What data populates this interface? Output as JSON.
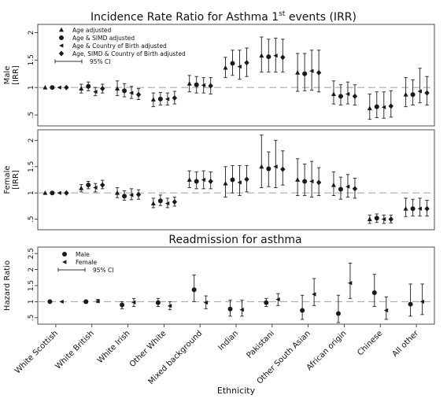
{
  "chart_data": [
    {
      "type": "scatter",
      "title": "Incidence Rate Ratio for Asthma 1",
      "title_superscript": "st",
      "title_suffix": " events (IRR)",
      "ylabel": "Male\n[IRR]",
      "ylim": [
        0.3,
        2.15
      ],
      "yticks": [
        ".5",
        "1",
        "1.5",
        "2"
      ],
      "ytick_values": [
        0.5,
        1,
        1.5,
        2
      ],
      "reference_line": 1,
      "categories": [
        "White Scottish",
        "White British",
        "White Irish",
        "Other White",
        "Mixed background",
        "Indian",
        "Pakistani",
        "Other South Asian",
        "African origin",
        "Chinese",
        "All other"
      ],
      "legend": {
        "position": "top-left",
        "entries": [
          {
            "label": "Age adjusted",
            "marker": "triangle-icon"
          },
          {
            "label": "Age & SIMD adjusted",
            "marker": "circle-icon"
          },
          {
            "label": "Age & Country of Birth adjusted",
            "marker": "left-triangle-icon"
          },
          {
            "label": "Age, SIMD & Country of Birth adjusted",
            "marker": "diamond-icon"
          }
        ],
        "ci_label": "95% CI"
      },
      "series": [
        {
          "name": "Age adjusted",
          "values": [
            1.0,
            0.98,
            0.98,
            0.78,
            1.07,
            1.36,
            1.58,
            1.27,
            0.88,
            0.62,
            0.87
          ],
          "ci_low": [
            1.0,
            0.9,
            0.85,
            0.65,
            0.92,
            1.18,
            1.28,
            0.93,
            0.7,
            0.42,
            0.65
          ],
          "ci_high": [
            1.0,
            1.06,
            1.12,
            0.9,
            1.22,
            1.55,
            1.92,
            1.62,
            1.12,
            0.88,
            1.18
          ]
        },
        {
          "name": "Age & SIMD adjusted",
          "values": [
            1.0,
            1.02,
            0.94,
            0.79,
            1.05,
            1.44,
            1.56,
            1.25,
            0.84,
            0.65,
            0.87
          ],
          "ci_low": [
            1.0,
            0.94,
            0.83,
            0.68,
            0.9,
            1.22,
            1.28,
            0.94,
            0.68,
            0.45,
            0.68
          ],
          "ci_high": [
            1.0,
            1.1,
            1.07,
            0.91,
            1.2,
            1.68,
            1.88,
            1.62,
            1.05,
            0.92,
            1.14
          ]
        },
        {
          "name": "Age & Country of Birth adjusted",
          "values": [
            1.0,
            0.92,
            0.9,
            0.79,
            1.04,
            1.38,
            1.58,
            1.3,
            0.88,
            0.64,
            0.93
          ],
          "ci_low": [
            1.0,
            0.85,
            0.8,
            0.68,
            0.9,
            1.15,
            1.28,
            0.95,
            0.7,
            0.44,
            0.72
          ],
          "ci_high": [
            1.0,
            1.0,
            1.02,
            0.9,
            1.18,
            1.68,
            1.9,
            1.68,
            1.1,
            0.92,
            1.35
          ]
        },
        {
          "name": "Age, SIMD & Country of Birth adjusted",
          "values": [
            1.0,
            0.98,
            0.87,
            0.81,
            1.03,
            1.45,
            1.55,
            1.27,
            0.84,
            0.66,
            0.9
          ],
          "ci_low": [
            1.0,
            0.9,
            0.78,
            0.7,
            0.88,
            1.2,
            1.28,
            0.92,
            0.68,
            0.46,
            0.68
          ],
          "ci_high": [
            1.0,
            1.06,
            0.98,
            0.93,
            1.18,
            1.72,
            1.88,
            1.68,
            1.05,
            0.94,
            1.2
          ]
        }
      ]
    },
    {
      "type": "scatter",
      "ylabel": "Female\n[IRR]",
      "ylim": [
        0.3,
        2.2
      ],
      "yticks": [
        ".5",
        "1",
        "1.5",
        "2"
      ],
      "ytick_values": [
        0.5,
        1,
        1.5,
        2
      ],
      "reference_line": 1,
      "categories": [
        "White Scottish",
        "White British",
        "White Irish",
        "Other White",
        "Mixed background",
        "Indian",
        "Pakistani",
        "Other South Asian",
        "African origin",
        "Chinese",
        "All other"
      ],
      "series": [
        {
          "name": "Age adjusted",
          "values": [
            1.0,
            1.09,
            1.0,
            0.8,
            1.25,
            1.18,
            1.5,
            1.25,
            1.15,
            0.5,
            0.7
          ],
          "ci_low": [
            1.0,
            1.02,
            0.91,
            0.72,
            1.1,
            0.92,
            1.1,
            0.95,
            0.95,
            0.42,
            0.55
          ],
          "ci_high": [
            1.0,
            1.16,
            1.1,
            0.9,
            1.42,
            1.5,
            2.1,
            1.65,
            1.4,
            0.58,
            0.9
          ]
        },
        {
          "name": "Age & SIMD adjusted",
          "values": [
            1.0,
            1.15,
            0.94,
            0.85,
            1.22,
            1.25,
            1.46,
            1.22,
            1.07,
            0.52,
            0.7
          ],
          "ci_low": [
            1.0,
            1.08,
            0.86,
            0.76,
            1.08,
            1.0,
            1.12,
            0.95,
            0.88,
            0.44,
            0.56
          ],
          "ci_high": [
            1.0,
            1.22,
            1.04,
            0.96,
            1.4,
            1.52,
            1.78,
            1.55,
            1.3,
            0.6,
            0.88
          ]
        },
        {
          "name": "Age & Country of Birth adjusted",
          "values": [
            1.0,
            1.1,
            0.96,
            0.8,
            1.25,
            1.2,
            1.5,
            1.22,
            1.12,
            0.5,
            0.7
          ],
          "ci_low": [
            1.0,
            1.02,
            0.87,
            0.72,
            1.08,
            0.95,
            1.1,
            0.92,
            0.92,
            0.42,
            0.56
          ],
          "ci_high": [
            1.0,
            1.18,
            1.08,
            0.9,
            1.42,
            1.52,
            2.0,
            1.6,
            1.35,
            0.58,
            0.9
          ]
        },
        {
          "name": "Age, SIMD & Country of Birth adjusted",
          "values": [
            1.0,
            1.15,
            0.97,
            0.83,
            1.22,
            1.26,
            1.45,
            1.2,
            1.08,
            0.5,
            0.7
          ],
          "ci_low": [
            1.0,
            1.08,
            0.88,
            0.75,
            1.08,
            1.02,
            1.15,
            0.95,
            0.9,
            0.43,
            0.56
          ],
          "ci_high": [
            1.0,
            1.24,
            1.06,
            0.92,
            1.4,
            1.52,
            1.8,
            1.48,
            1.28,
            0.58,
            0.86
          ]
        }
      ]
    },
    {
      "type": "scatter",
      "title": "Readmission for asthma",
      "ylabel": "Hazard Ratio",
      "xlabel": "Ethnicity",
      "ylim": [
        0.3,
        2.7
      ],
      "yticks": [
        ".5",
        "1",
        "1.5",
        "2",
        "2.5"
      ],
      "ytick_values": [
        0.5,
        1,
        1.5,
        2,
        2.5
      ],
      "reference_line": 1,
      "categories": [
        "White Scottish",
        "White British",
        "White Irish",
        "Other White",
        "Mixed background",
        "Indian",
        "Pakistani",
        "Other South Asian",
        "African origin",
        "Chinese",
        "All other"
      ],
      "legend": {
        "position": "top-left",
        "entries": [
          {
            "label": "Male",
            "marker": "circle-icon"
          },
          {
            "label": "Female",
            "marker": "left-triangle-icon"
          }
        ],
        "ci_label": "95% CI"
      },
      "series": [
        {
          "name": "Male",
          "values": [
            1.0,
            1.0,
            0.9,
            0.97,
            1.37,
            0.77,
            0.97,
            0.73,
            0.63,
            1.28,
            0.92
          ],
          "ci_low": [
            1.0,
            0.95,
            0.78,
            0.85,
            1.0,
            0.55,
            0.85,
            0.45,
            0.35,
            0.85,
            0.55
          ],
          "ci_high": [
            1.0,
            1.05,
            1.0,
            1.1,
            1.83,
            1.05,
            1.1,
            1.2,
            1.2,
            1.85,
            1.55
          ]
        },
        {
          "name": "Female",
          "values": [
            1.0,
            1.02,
            0.98,
            0.87,
            0.97,
            0.75,
            1.07,
            1.23,
            1.58,
            0.73,
            1.0
          ],
          "ci_low": [
            1.0,
            0.97,
            0.85,
            0.75,
            0.78,
            0.55,
            0.88,
            0.88,
            1.1,
            0.45,
            0.6
          ],
          "ci_high": [
            1.0,
            1.07,
            1.1,
            1.0,
            1.18,
            1.05,
            1.25,
            1.72,
            2.2,
            1.15,
            1.55
          ]
        }
      ]
    }
  ]
}
